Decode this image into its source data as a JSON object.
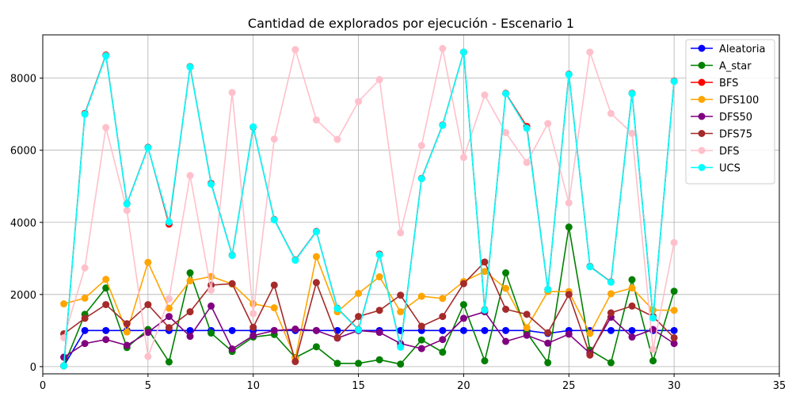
{
  "chart_data": {
    "type": "line",
    "title": "Cantidad de explorados por ejecución - Escenario 1",
    "xlabel": "",
    "ylabel": "",
    "xlim": [
      0,
      35
    ],
    "ylim": [
      -200,
      9200
    ],
    "xticks": [
      0,
      5,
      10,
      15,
      20,
      25,
      30,
      35
    ],
    "yticks": [
      0,
      2000,
      4000,
      6000,
      8000
    ],
    "grid": true,
    "legend_position": "top-right",
    "x": [
      1,
      2,
      3,
      4,
      5,
      6,
      7,
      8,
      9,
      10,
      11,
      12,
      13,
      14,
      15,
      16,
      17,
      18,
      19,
      20,
      21,
      22,
      23,
      24,
      25,
      26,
      27,
      28,
      29,
      30
    ],
    "series": [
      {
        "name": "Aleatoria",
        "color": "#0000ff",
        "values": [
          20,
          1000,
          1000,
          1000,
          1000,
          1000,
          1000,
          1000,
          1000,
          1000,
          1000,
          1000,
          1000,
          1000,
          1000,
          1000,
          1000,
          1000,
          1000,
          1000,
          1000,
          1000,
          1000,
          920,
          1000,
          1000,
          1000,
          1000,
          1000,
          1000
        ]
      },
      {
        "name": "A_star",
        "color": "#008000",
        "values": [
          20,
          1450,
          2180,
          530,
          1030,
          130,
          2600,
          930,
          420,
          820,
          890,
          250,
          550,
          90,
          90,
          190,
          70,
          740,
          400,
          1720,
          160,
          2600,
          940,
          110,
          3870,
          460,
          110,
          2410,
          160,
          2090
        ]
      },
      {
        "name": "BFS",
        "color": "#ff0000",
        "values": [
          20,
          7020,
          8640,
          4520,
          6080,
          3950,
          8320,
          5080,
          3090,
          6640,
          4080,
          2960,
          3750,
          1620,
          1030,
          3120,
          550,
          5220,
          6700,
          8720,
          1580,
          7580,
          6660,
          2140,
          8110,
          2780,
          2350,
          7580,
          1360,
          7920
        ]
      },
      {
        "name": "DFS100",
        "color": "#ffa500",
        "values": [
          1740,
          1900,
          2420,
          960,
          2890,
          1620,
          2380,
          2500,
          2290,
          1740,
          1630,
          230,
          3050,
          1520,
          2030,
          2490,
          1520,
          1950,
          1890,
          2360,
          2640,
          2170,
          1080,
          2080,
          2080,
          920,
          2020,
          2180,
          1570,
          1560
        ]
      },
      {
        "name": "DFS50",
        "color": "#800080",
        "values": [
          260,
          640,
          750,
          590,
          950,
          1390,
          840,
          1680,
          490,
          860,
          1000,
          1040,
          1000,
          790,
          1000,
          950,
          640,
          500,
          750,
          1340,
          1520,
          700,
          870,
          650,
          900,
          370,
          1370,
          820,
          1030,
          640
        ]
      },
      {
        "name": "DFS75",
        "color": "#a52a2a",
        "values": [
          910,
          1340,
          1720,
          1190,
          1720,
          1080,
          1520,
          2260,
          2300,
          1090,
          2260,
          140,
          2330,
          800,
          1390,
          1560,
          1980,
          1120,
          1390,
          2300,
          2900,
          1590,
          1450,
          940,
          2000,
          320,
          1490,
          1680,
          1390,
          800
        ]
      },
      {
        "name": "DFS",
        "color": "#ffc0cb",
        "values": [
          800,
          2740,
          6630,
          4330,
          280,
          1880,
          5300,
          2120,
          7600,
          1470,
          6310,
          8790,
          6840,
          6300,
          7350,
          7960,
          3710,
          6130,
          8820,
          5800,
          7530,
          6490,
          5660,
          6740,
          4540,
          8720,
          7020,
          6470,
          480,
          3440
        ]
      },
      {
        "name": "UCS",
        "color": "#00ffff",
        "values": [
          20,
          7000,
          8620,
          4510,
          6070,
          4010,
          8310,
          5060,
          3080,
          6650,
          4070,
          2950,
          3740,
          1610,
          1020,
          3100,
          540,
          5210,
          6690,
          8720,
          1570,
          7570,
          6610,
          2140,
          8100,
          2770,
          2340,
          7570,
          1350,
          7910
        ]
      }
    ]
  }
}
